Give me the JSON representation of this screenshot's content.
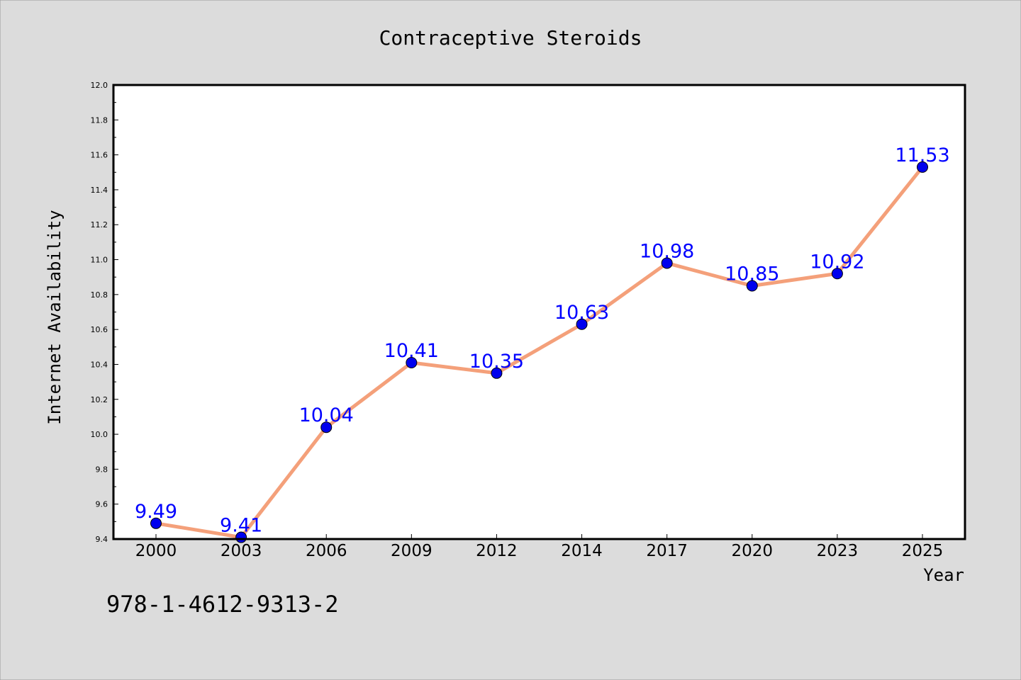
{
  "chart_data": {
    "type": "line",
    "title": "Contraceptive Steroids",
    "xlabel": "Year",
    "ylabel": "Internet Availability",
    "categories": [
      "2000",
      "2003",
      "2006",
      "2009",
      "2012",
      "2014",
      "2017",
      "2020",
      "2023",
      "2025"
    ],
    "series": [
      {
        "values": [
          9.49,
          9.41,
          10.04,
          10.41,
          10.35,
          10.63,
          10.98,
          10.85,
          10.92,
          11.53
        ]
      }
    ],
    "data_labels": [
      "9.49",
      "9.41",
      "10.04",
      "10.41",
      "10.35",
      "10.63",
      "10.98",
      "10.85",
      "10.92",
      "11.53"
    ],
    "ylim": [
      9.4,
      12.0
    ],
    "yticks": [
      "9.4",
      "9.6",
      "9.8",
      "10.0",
      "10.2",
      "10.4",
      "10.6",
      "10.8",
      "11.0",
      "11.2",
      "11.4",
      "11.6",
      "11.8",
      "12.0"
    ],
    "grid": false,
    "legend": "none",
    "colors": {
      "line": "#f4a07a",
      "marker": "#0000ee",
      "label": "#0000ff",
      "background": "#dcdcdc",
      "plot_area": "#ffffff"
    }
  },
  "annotation": "978-1-4612-9313-2"
}
